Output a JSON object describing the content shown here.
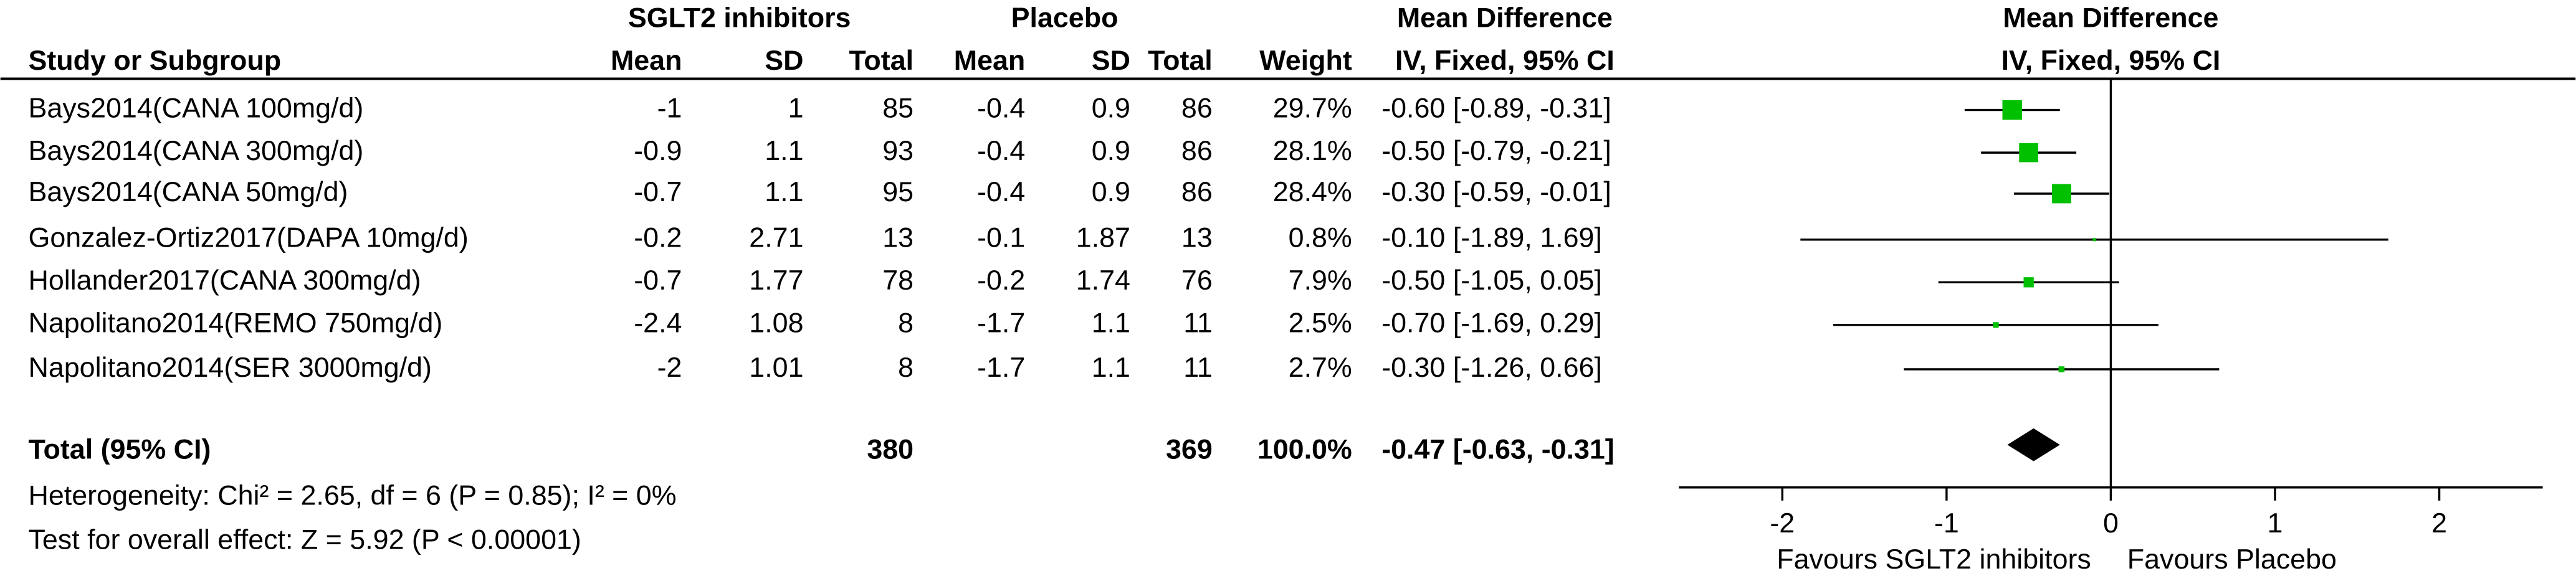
{
  "chart_data": {
    "type": "forest",
    "group_headers": [
      "SGLT2 inhibitors",
      "Placebo",
      "Mean Difference"
    ],
    "plot_title": "Mean Difference",
    "plot_subtitle": "IV, Fixed, 95% CI",
    "columns": [
      "Study or Subgroup",
      "Mean",
      "SD",
      "Total",
      "Mean",
      "SD",
      "Total",
      "Weight",
      "IV, Fixed, 95% CI"
    ],
    "rows": [
      {
        "study": "Bays2014(CANA 100mg/d)",
        "mean1": -1,
        "sd1": 1,
        "total1": 85,
        "mean2": -0.4,
        "sd2": 0.9,
        "total2": 86,
        "weight": 29.7,
        "weight_label": "29.7%",
        "md": -0.6,
        "lo": -0.89,
        "hi": -0.31,
        "ci_label": "-0.60 [-0.89, -0.31]"
      },
      {
        "study": "Bays2014(CANA 300mg/d)",
        "mean1": -0.9,
        "sd1": 1.1,
        "total1": 93,
        "mean2": -0.4,
        "sd2": 0.9,
        "total2": 86,
        "weight": 28.1,
        "weight_label": "28.1%",
        "md": -0.5,
        "lo": -0.79,
        "hi": -0.21,
        "ci_label": "-0.50 [-0.79, -0.21]"
      },
      {
        "study": "Bays2014(CANA 50mg/d)",
        "mean1": -0.7,
        "sd1": 1.1,
        "total1": 95,
        "mean2": -0.4,
        "sd2": 0.9,
        "total2": 86,
        "weight": 28.4,
        "weight_label": "28.4%",
        "md": -0.3,
        "lo": -0.59,
        "hi": -0.01,
        "ci_label": "-0.30 [-0.59, -0.01]"
      },
      {
        "study": "Gonzalez-Ortiz2017(DAPA 10mg/d)",
        "mean1": -0.2,
        "sd1": 2.71,
        "total1": 13,
        "mean2": -0.1,
        "sd2": 1.87,
        "total2": 13,
        "weight": 0.8,
        "weight_label": "0.8%",
        "md": -0.1,
        "lo": -1.89,
        "hi": 1.69,
        "ci_label": "-0.10 [-1.89, 1.69]"
      },
      {
        "study": "Hollander2017(CANA 300mg/d)",
        "mean1": -0.7,
        "sd1": 1.77,
        "total1": 78,
        "mean2": -0.2,
        "sd2": 1.74,
        "total2": 76,
        "weight": 7.9,
        "weight_label": "7.9%",
        "md": -0.5,
        "lo": -1.05,
        "hi": 0.05,
        "ci_label": "-0.50 [-1.05, 0.05]"
      },
      {
        "study": "Napolitano2014(REMO 750mg/d)",
        "mean1": -2.4,
        "sd1": 1.08,
        "total1": 8,
        "mean2": -1.7,
        "sd2": 1.1,
        "total2": 11,
        "weight": 2.5,
        "weight_label": "2.5%",
        "md": -0.7,
        "lo": -1.69,
        "hi": 0.29,
        "ci_label": "-0.70 [-1.69, 0.29]"
      },
      {
        "study": "Napolitano2014(SER 3000mg/d)",
        "mean1": -2,
        "sd1": 1.01,
        "total1": 8,
        "mean2": -1.7,
        "sd2": 1.1,
        "total2": 11,
        "weight": 2.7,
        "weight_label": "2.7%",
        "md": -0.3,
        "lo": -1.26,
        "hi": 0.66,
        "ci_label": "-0.30 [-1.26, 0.66]"
      }
    ],
    "total": {
      "study": "Total (95% CI)",
      "total1": 380,
      "total2": 369,
      "weight_label": "100.0%",
      "md": -0.47,
      "lo": -0.63,
      "hi": -0.31,
      "ci_label": "-0.47 [-0.63, -0.31]"
    },
    "heterogeneity": "Heterogeneity: Chi² = 2.65, df = 6 (P = 0.85); I² = 0%",
    "overall_effect": "Test for overall effect: Z = 5.92 (P < 0.00001)",
    "xlim": [
      -2.63,
      2.63
    ],
    "xticks": [
      -2,
      -1,
      0,
      1,
      2
    ],
    "favours_left": "Favours SGLT2 inhibitors",
    "favours_right": "Favours Placebo",
    "square_color": "#00c000",
    "line_color": "#000000"
  }
}
